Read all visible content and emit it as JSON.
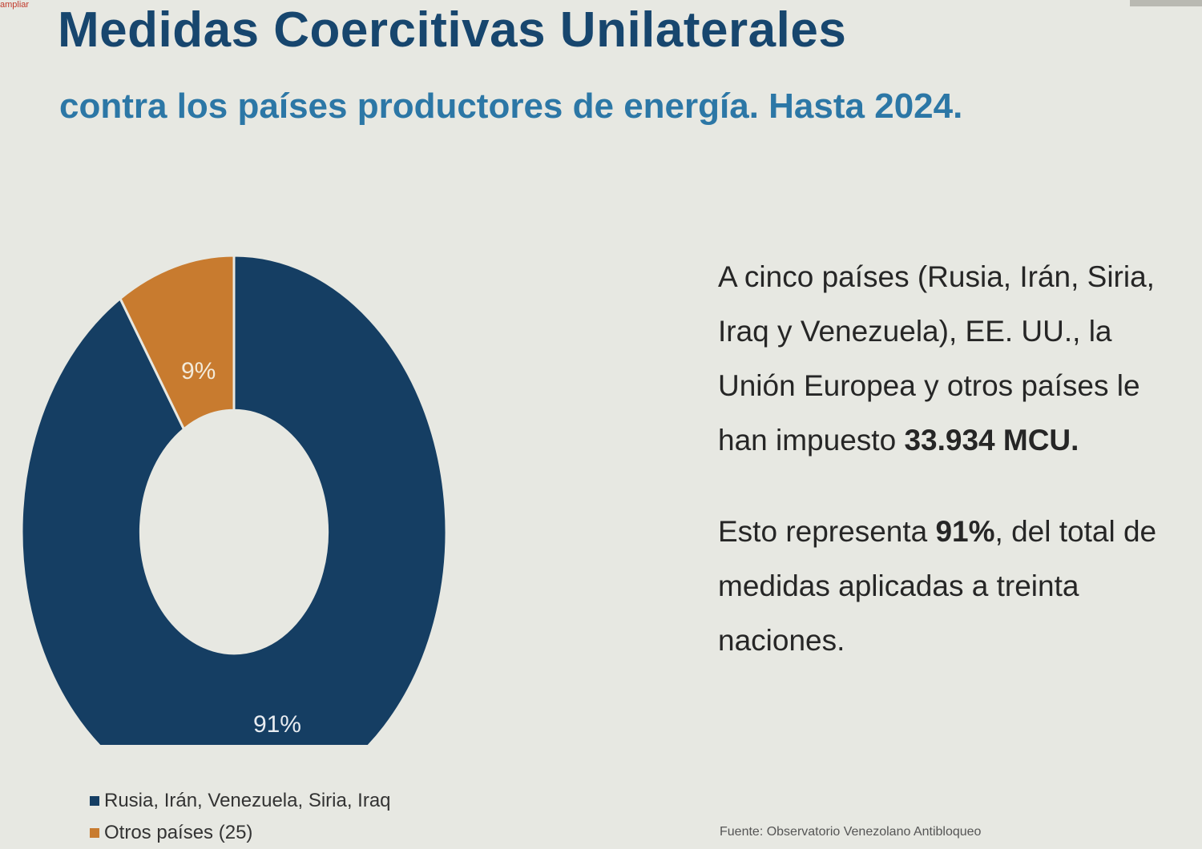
{
  "title": "Medidas Coercitivas Unilaterales",
  "subtitle": "contra los países productores de energía. Hasta 2024.",
  "corner_text": "ampliar",
  "info": {
    "p1_before": "A cinco países (Rusia, Irán, Siria, Iraq y Venezuela), EE. UU., la Unión Europea y otros países le han impuesto ",
    "p1_strong": "33.934 MCU.",
    "p2_before": "Esto representa ",
    "p2_strong": "91%",
    "p2_after": ", del total de medidas aplicadas  a treinta naciones."
  },
  "source": "Fuente: Observatorio Venezolano Antibloqueo",
  "chart_data": {
    "type": "pie",
    "variant": "donut",
    "title": "",
    "series": [
      {
        "name": "Rusia, Irán, Venezuela, Siria, Iraq",
        "value": 91,
        "label": "91%",
        "color": "#153e63"
      },
      {
        "name": "Otros países (25)",
        "value": 9,
        "label": "9%",
        "color": "#c87b2f"
      }
    ],
    "legend_position": "bottom-left"
  }
}
